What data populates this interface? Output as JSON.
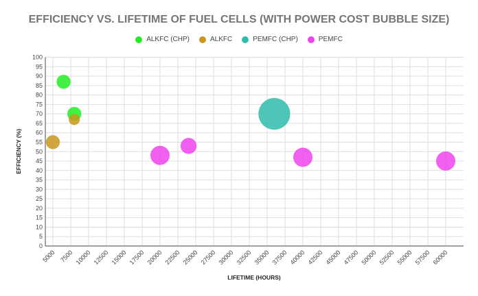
{
  "chart_data": {
    "type": "scatter",
    "subtype": "bubble",
    "title": "EFFICIENCY VS. LIFETIME OF FUEL CELLS (WITH POWER COST BUBBLE SIZE)",
    "xlabel": "LIFETIME (HOURS)",
    "ylabel": "EFFICIENCY (%)",
    "xlim": [
      5000,
      60000
    ],
    "ylim": [
      0,
      100
    ],
    "x_ticks": [
      "5000",
      "7500",
      "10000",
      "12500",
      "15000",
      "17500",
      "20000",
      "22500",
      "25000",
      "27500",
      "30000",
      "32500",
      "35000",
      "37500",
      "40000",
      "42500",
      "45000",
      "47500",
      "50000",
      "52500",
      "55000",
      "57500",
      "60000"
    ],
    "y_ticks": [
      "0",
      "5",
      "10",
      "15",
      "20",
      "25",
      "30",
      "35",
      "40",
      "45",
      "50",
      "55",
      "60",
      "65",
      "70",
      "75",
      "80",
      "85",
      "90",
      "95",
      "100"
    ],
    "grid": true,
    "legend_position": "top",
    "series": [
      {
        "name": "ALKFC (CHP)",
        "color": "#22ee22",
        "points": [
          {
            "x": 6500,
            "y": 87,
            "size": 1.6
          },
          {
            "x": 8000,
            "y": 70,
            "size": 1.6
          }
        ]
      },
      {
        "name": "ALKFC",
        "color": "#c9981c",
        "points": [
          {
            "x": 5000,
            "y": 55,
            "size": 1.6
          },
          {
            "x": 8000,
            "y": 67,
            "size": 1.0
          }
        ]
      },
      {
        "name": "PEMFC (CHP)",
        "color": "#2fbcaa",
        "points": [
          {
            "x": 36000,
            "y": 70,
            "size": 5.0
          }
        ]
      },
      {
        "name": "PEMFC",
        "color": "#ee44ee",
        "points": [
          {
            "x": 20000,
            "y": 48,
            "size": 3.0
          },
          {
            "x": 24000,
            "y": 53,
            "size": 2.1
          },
          {
            "x": 40000,
            "y": 47,
            "size": 3.0
          },
          {
            "x": 60000,
            "y": 45,
            "size": 3.0
          }
        ]
      }
    ]
  }
}
